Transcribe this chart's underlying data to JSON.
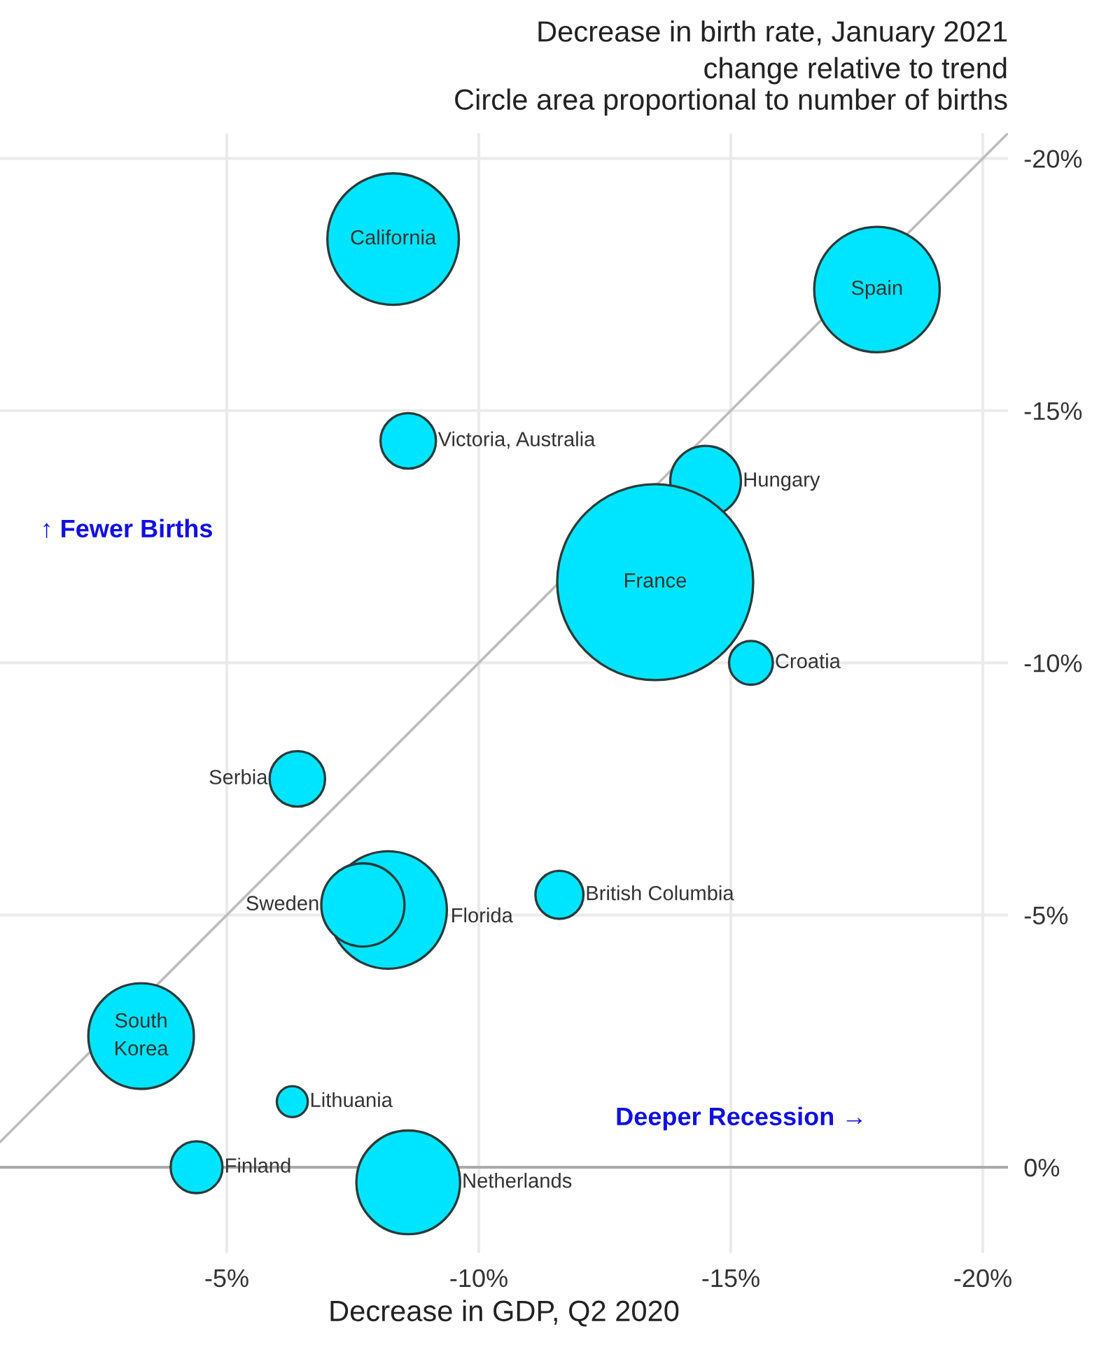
{
  "chart_data": {
    "type": "bubble",
    "title": "Decrease in birth rate, January 2021",
    "subtitle": "change relative to trend\nCircle area proportional to number of births",
    "xlabel": "Decrease in GDP, Q2 2020",
    "series": [
      {
        "type": "line",
        "color": "#bdbdbd",
        "x": [
          -0.5,
          -20.5
        ],
        "values": [
          -0.5,
          -20.5
        ]
      },
      {
        "color": "#00e5ff",
        "x": [
          -8.3,
          -17.9,
          -8.6,
          -14.5,
          -13.5,
          -15.4,
          -6.4,
          -8.2,
          -7.7,
          -11.6,
          -3.3,
          -6.3,
          -4.4,
          -8.6
        ],
        "values": [
          -18.4,
          -17.4,
          -14.4,
          -13.6,
          -11.6,
          -10.0,
          -7.7,
          -5.1,
          -5.2,
          -5.4,
          -2.6,
          -1.3,
          0.0,
          0.3
        ],
        "sizes": [
          0.45,
          0.41,
          0.08,
          0.13,
          1,
          0.05,
          0.08,
          0.36,
          0.18,
          0.06,
          0.29,
          0.025,
          0.07,
          0.28
        ]
      }
    ],
    "annotations": [
      {
        "text": "California",
        "x": -8.3,
        "y": -18.4
      },
      {
        "text": "Spain",
        "x": -17.9,
        "y": -17.4
      },
      {
        "text": "Victoria, Australia",
        "x": -8.6,
        "y": -14.4
      },
      {
        "text": "Hungary",
        "x": -14.5,
        "y": -13.6
      },
      {
        "text": "France",
        "x": -13.5,
        "y": -11.6
      },
      {
        "text": "Croatia",
        "x": -15.4,
        "y": -10.0
      },
      {
        "text": "Serbia",
        "x": -6.4,
        "y": -7.7
      },
      {
        "text": "Sweden",
        "x": -7.7,
        "y": -5.2
      },
      "Florida",
      {
        "text": "British Columbia",
        "x": -11.6,
        "y": -5.4
      },
      {
        "text": "South\nKorea",
        "x": -3.3,
        "y": -2.6
      },
      {
        "text": "Lithuania",
        "x": -6.3,
        "y": -1.3
      },
      {
        "text": "Finland",
        "x": -4.4,
        "y": 0.0
      },
      {
        "text": "Netherlands",
        "x": -8.6,
        "y": 0.3
      },
      "↑ Fewer Births",
      "Deeper Recession →"
    ],
    "ref_lines": [
      {
        "axis": "y",
        "value": 0,
        "color": "#aaaaaa"
      }
    ],
    "xlim": [
      -0.5,
      -20.5
    ],
    "ylim": [
      1.7,
      -20.5
    ],
    "xticks": [
      {
        "value": -5,
        "label": "-5%"
      },
      {
        "value": -10,
        "label": "-10%"
      },
      {
        "value": -15,
        "label": "-15%"
      },
      {
        "value": -20,
        "label": "-20%"
      }
    ],
    "yticks": [
      {
        "value": 0,
        "label": "0%"
      },
      {
        "value": -5,
        "label": "-5%"
      },
      {
        "value": -10,
        "label": "-10%"
      },
      {
        "value": -15,
        "label": "-15%"
      },
      {
        "value": -20,
        "label": "-20%"
      }
    ],
    "grid": true
  }
}
